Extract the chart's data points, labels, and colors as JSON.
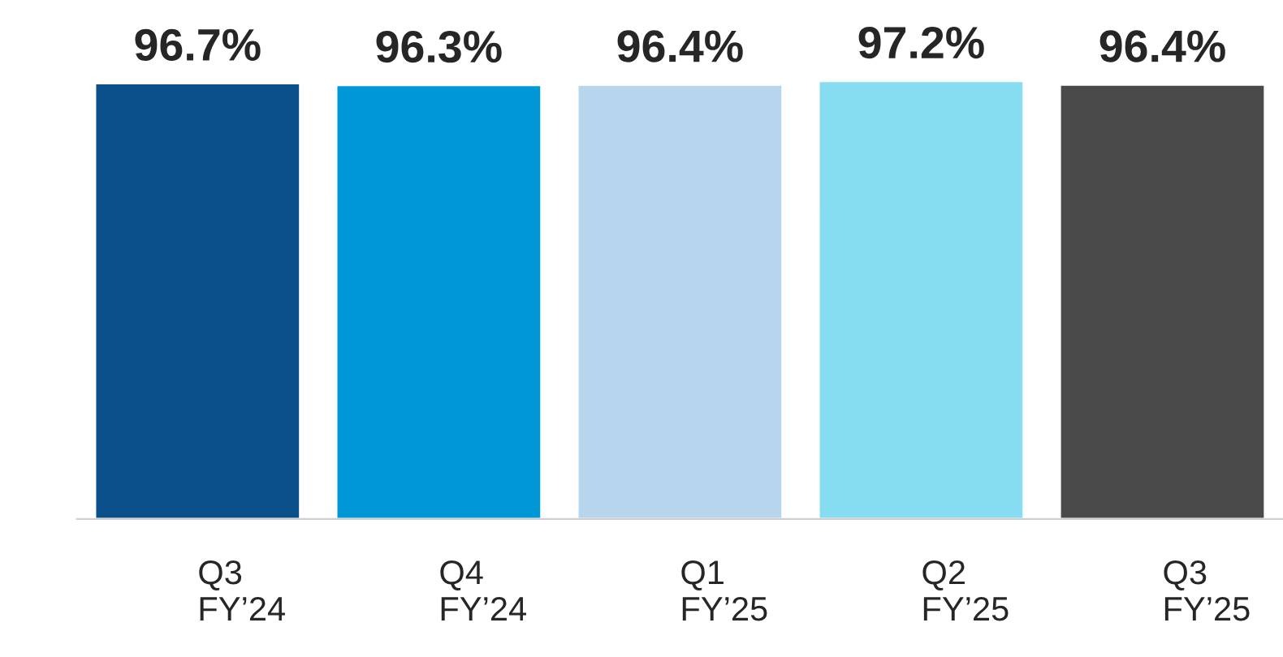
{
  "chart_data": {
    "type": "bar",
    "categories": [
      "Q3\nFY’24",
      "Q4\nFY’24",
      "Q1\nFY’25",
      "Q2\nFY’25",
      "Q3\nFY’25"
    ],
    "values": [
      96.7,
      96.3,
      96.4,
      97.2,
      96.4
    ],
    "value_labels": [
      "96.7%",
      "96.3%",
      "96.4%",
      "97.2%",
      "96.4%"
    ],
    "colors": [
      "#0a4f8a",
      "#0097d7",
      "#b7d6ee",
      "#86dcf0",
      "#4a4a4a"
    ],
    "tick_labels": "x",
    "grid": false,
    "legend": false
  }
}
